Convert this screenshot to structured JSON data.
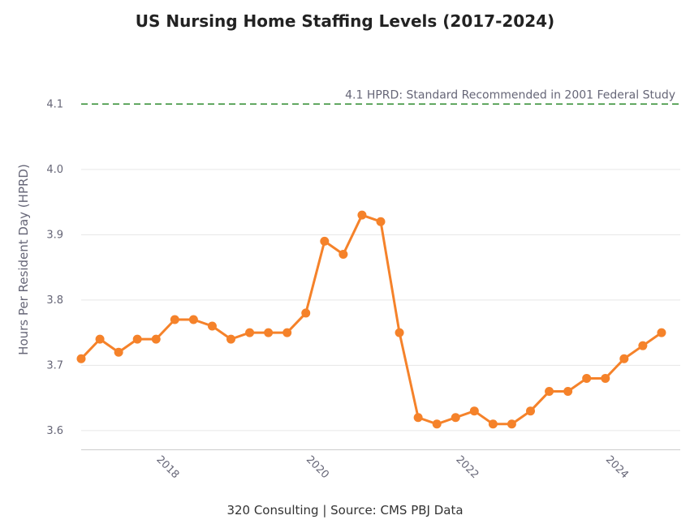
{
  "chart_data": {
    "type": "line",
    "title": "US Nursing Home Staffing Levels (2017-2024)",
    "ylabel": "Hours Per Resident Day (HPRD)",
    "xlabel": "",
    "caption": "320 Consulting | Source: CMS PBJ Data",
    "ylim": [
      3.57,
      4.16
    ],
    "xlim": [
      2017.0,
      2025.0
    ],
    "yticks": [
      3.6,
      3.7,
      3.8,
      3.9,
      4.0,
      4.1
    ],
    "ytick_labels": [
      "3.6",
      "3.7",
      "3.8",
      "3.9",
      "4.0",
      "4.1"
    ],
    "xticks": [
      2018,
      2020,
      2022,
      2024
    ],
    "xtick_labels": [
      "2018",
      "2020",
      "2022",
      "2024"
    ],
    "grid": true,
    "reference_line": {
      "y": 4.1,
      "label": "4.1 HPRD: Standard Recommended in 2001 Federal Study",
      "color": "#2e8b2e",
      "style": "dashed"
    },
    "series": [
      {
        "color": "#f5822a",
        "points": [
          [
            2017.0,
            3.71
          ],
          [
            2017.25,
            3.74
          ],
          [
            2017.5,
            3.72
          ],
          [
            2017.75,
            3.74
          ],
          [
            2018.0,
            3.74
          ],
          [
            2018.25,
            3.77
          ],
          [
            2018.5,
            3.77
          ],
          [
            2018.75,
            3.76
          ],
          [
            2019.0,
            3.74
          ],
          [
            2019.25,
            3.75
          ],
          [
            2019.5,
            3.75
          ],
          [
            2019.75,
            3.75
          ],
          [
            2020.0,
            3.78
          ],
          [
            2020.25,
            3.89
          ],
          [
            2020.5,
            3.87
          ],
          [
            2020.75,
            3.93
          ],
          [
            2021.0,
            3.92
          ],
          [
            2021.25,
            3.75
          ],
          [
            2021.5,
            3.62
          ],
          [
            2021.75,
            3.61
          ],
          [
            2022.0,
            3.62
          ],
          [
            2022.25,
            3.63
          ],
          [
            2022.5,
            3.61
          ],
          [
            2022.75,
            3.61
          ],
          [
            2023.0,
            3.63
          ],
          [
            2023.25,
            3.66
          ],
          [
            2023.5,
            3.66
          ],
          [
            2023.75,
            3.68
          ],
          [
            2024.0,
            3.68
          ],
          [
            2024.25,
            3.71
          ],
          [
            2024.5,
            3.73
          ],
          [
            2024.75,
            3.75
          ]
        ]
      }
    ]
  }
}
